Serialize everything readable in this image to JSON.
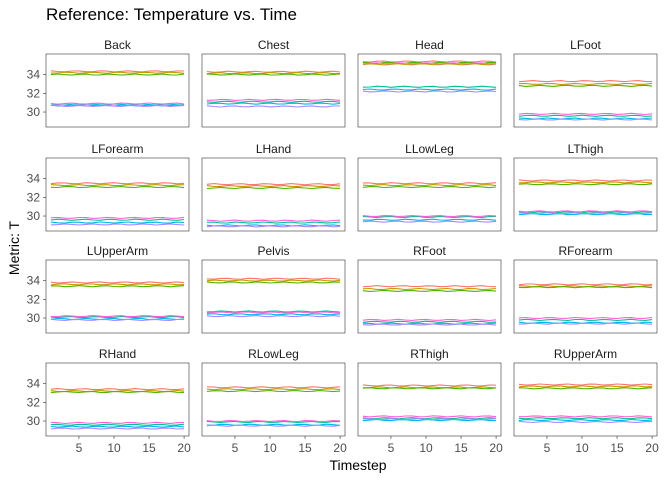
{
  "chart_data": {
    "type": "line",
    "title": "Reference: Temperature vs. Time",
    "xlabel": "Timestep",
    "ylabel": "Metric: T",
    "x": [
      1,
      2,
      3,
      4,
      5,
      6,
      7,
      8,
      9,
      10,
      11,
      12,
      13,
      14,
      15,
      16,
      17,
      18,
      19,
      20
    ],
    "x_ticks": [
      5,
      10,
      15,
      20
    ],
    "y_ticks": [
      30,
      32,
      34
    ],
    "ylim": [
      28.4,
      36.2
    ],
    "facet_layout": {
      "rows": 4,
      "cols": 4
    },
    "series_colors": [
      "#F8766D",
      "#C49A00",
      "#53B400",
      "#00C094",
      "#00B6EB",
      "#A58AFF",
      "#FB61D7"
    ],
    "grid": false,
    "legend": "none",
    "facets": [
      {
        "name": "Back",
        "levels": [
          34.35,
          34.2,
          34.0,
          30.7,
          30.8,
          30.65,
          30.9
        ]
      },
      {
        "name": "Chest",
        "levels": [
          34.3,
          34.15,
          34.0,
          31.1,
          30.9,
          30.6,
          31.3
        ]
      },
      {
        "name": "Head",
        "levels": [
          35.4,
          35.1,
          35.25,
          32.7,
          32.4,
          32.2,
          35.2
        ]
      },
      {
        "name": "LFoot",
        "levels": [
          33.3,
          33.0,
          32.8,
          29.6,
          29.3,
          29.2,
          29.8
        ]
      },
      {
        "name": "LForearm",
        "levels": [
          33.5,
          33.3,
          33.1,
          29.6,
          29.3,
          29.1,
          29.8
        ]
      },
      {
        "name": "LHand",
        "levels": [
          33.4,
          33.2,
          33.0,
          29.3,
          29.0,
          28.9,
          29.5
        ]
      },
      {
        "name": "LLowLeg",
        "levels": [
          33.5,
          33.3,
          33.1,
          29.9,
          29.6,
          29.4,
          30.0
        ]
      },
      {
        "name": "LThigh",
        "levels": [
          33.8,
          33.6,
          33.4,
          30.4,
          30.2,
          30.3,
          30.5
        ]
      },
      {
        "name": "LUpperArm",
        "levels": [
          33.8,
          33.6,
          33.4,
          30.1,
          29.9,
          29.8,
          30.2
        ]
      },
      {
        "name": "Pelvis",
        "levels": [
          34.2,
          34.0,
          33.8,
          30.7,
          30.4,
          30.2,
          30.6
        ]
      },
      {
        "name": "RFoot",
        "levels": [
          33.4,
          33.1,
          32.9,
          29.6,
          29.4,
          29.3,
          29.8
        ]
      },
      {
        "name": "RForearm",
        "levels": [
          33.6,
          33.4,
          33.3,
          29.8,
          29.5,
          29.4,
          30.0
        ]
      },
      {
        "name": "RHand",
        "levels": [
          33.4,
          33.2,
          33.1,
          29.6,
          29.4,
          29.2,
          29.8
        ]
      },
      {
        "name": "RLowLeg",
        "levels": [
          33.6,
          33.4,
          33.2,
          29.9,
          29.6,
          29.5,
          30.0
        ]
      },
      {
        "name": "RThigh",
        "levels": [
          33.8,
          33.6,
          33.5,
          30.3,
          30.1,
          30.2,
          30.5
        ]
      },
      {
        "name": "RUpperArm",
        "levels": [
          33.9,
          33.7,
          33.5,
          30.3,
          30.1,
          29.9,
          30.5
        ]
      }
    ]
  }
}
